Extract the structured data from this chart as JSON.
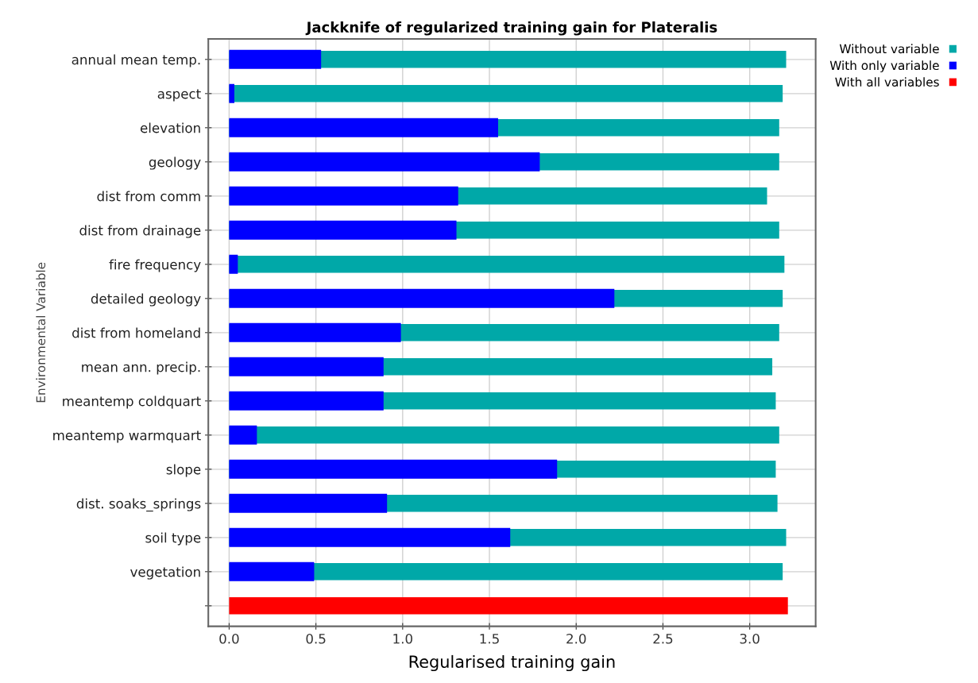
{
  "chart_data": {
    "type": "bar",
    "orientation": "horizontal",
    "title": "Jackknife of regularized training gain for Plateralis",
    "xlabel": "Regularised training gain",
    "ylabel": "Environmental Variable",
    "categories": [
      "annual mean temp.",
      "aspect",
      "elevation",
      "geology",
      "dist from comm",
      "dist from drainage",
      "fire frequency",
      "detailed geology",
      "dist from homeland",
      "mean ann. precip.",
      "meantemp coldquart",
      "meantemp warmquart",
      "slope",
      "dist. soaks_springs",
      "soil type",
      "vegetation",
      null
    ],
    "series": [
      {
        "name": "Without variable",
        "color": "#00a8a8",
        "values": [
          3.21,
          3.19,
          3.17,
          3.17,
          3.1,
          3.17,
          3.2,
          3.19,
          3.17,
          3.13,
          3.15,
          3.17,
          3.15,
          3.16,
          3.21,
          3.19,
          null
        ]
      },
      {
        "name": "With only variable",
        "color": "#0000ff",
        "values": [
          0.53,
          0.03,
          1.55,
          1.79,
          1.32,
          1.31,
          0.05,
          2.22,
          0.99,
          0.89,
          0.89,
          0.16,
          1.89,
          0.91,
          1.62,
          0.49,
          null
        ]
      },
      {
        "name": "With all variables",
        "color": "#ff0000",
        "values": [
          null,
          null,
          null,
          null,
          null,
          null,
          null,
          null,
          null,
          null,
          null,
          null,
          null,
          null,
          null,
          null,
          3.22
        ]
      }
    ],
    "xlim": [
      -0.12,
      3.38
    ],
    "xticks": [
      {
        "value": 0,
        "label": "0.0"
      },
      {
        "value": 0.5,
        "label": "0.5"
      },
      {
        "value": 1,
        "label": "1.0"
      },
      {
        "value": 1.5,
        "label": "1.5"
      },
      {
        "value": 2,
        "label": "2.0"
      },
      {
        "value": 2.5,
        "label": "2.5"
      },
      {
        "value": 3,
        "label": "3.0"
      }
    ],
    "grid": true,
    "legend": "top right"
  }
}
